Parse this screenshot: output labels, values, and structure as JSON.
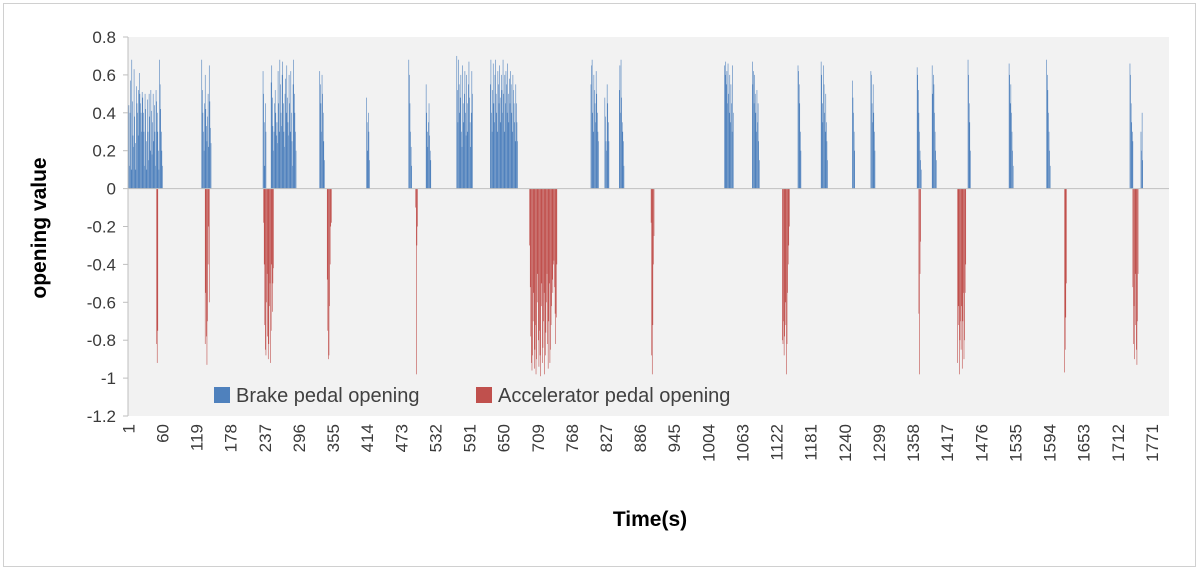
{
  "chart_data": {
    "type": "bar",
    "title": "",
    "xlabel": "Time(s)",
    "ylabel": "opening value",
    "ylim": [
      -1.2,
      0.8
    ],
    "yticks": [
      0.8,
      0.6,
      0.4,
      0.2,
      0,
      -0.2,
      -0.4,
      -0.6,
      -0.8,
      -1,
      -1.2
    ],
    "ytick_labels": [
      "0.8",
      "0.6",
      "0.4",
      "0.2",
      "0",
      "-0.2",
      "-0.4",
      "-0.6",
      "-0.8",
      "-1",
      "-1.2"
    ],
    "xlim": [
      1,
      1800
    ],
    "xticks": [
      1,
      60,
      119,
      178,
      237,
      296,
      355,
      414,
      473,
      532,
      591,
      650,
      709,
      768,
      827,
      886,
      945,
      1004,
      1063,
      1122,
      1181,
      1240,
      1299,
      1358,
      1417,
      1476,
      1535,
      1594,
      1653,
      1712,
      1771
    ],
    "grid": false,
    "legend_position": "bottom-left",
    "colors": {
      "brake": "#4f81bd",
      "accelerator": "#c0504d",
      "plot_bg": "#f2f2f2",
      "axis": "#bfbfbf"
    },
    "series": [
      {
        "name": "Brake pedal opening",
        "color": "#4f81bd",
        "sampling": "1 s per bar; values listed for active intervals, 0 elsewhere",
        "segments": [
          {
            "start": 1,
            "values": [
              0.38,
              0.44,
              0.12,
              0.4,
              0.57,
              0.1,
              0.68,
              0.46,
              0.28,
              0.22,
              0.63,
              0.38,
              0.24,
              0.1,
              0.54,
              0.45,
              0.4,
              0.28,
              0.52,
              0.61,
              0.5,
              0.45,
              0.4,
              0.3,
              0.51,
              0.48,
              0.4,
              0.3,
              0.12,
              0.5,
              0.42,
              0.25,
              0.1,
              0.47,
              0.3,
              0.15,
              0.5,
              0.38,
              0.2,
              0.52,
              0.41,
              0.18,
              0.35,
              0.5,
              0.25,
              0.44,
              0.3,
              0.12,
              0.52,
              0.46,
              0.4,
              0.3,
              0.2,
              0.1,
              0.68,
              0.55,
              0.42,
              0.3,
              0.2,
              0.12
            ]
          },
          {
            "start": 128,
            "values": [
              0.68,
              0.52,
              0.4,
              0.3,
              0.2,
              0.45,
              0.6,
              0.42,
              0.33,
              0.25,
              0.38,
              0.5,
              0.22,
              0.65,
              0.46,
              0.32,
              0.24
            ]
          },
          {
            "start": 234,
            "values": [
              0.62,
              0.5,
              0.35,
              0.12,
              0.45,
              0.3
            ]
          },
          {
            "start": 248,
            "values": [
              0.56,
              0.65,
              0.48,
              0.33,
              0.2,
              0.3,
              0.45,
              0.52,
              0.4,
              0.28,
              0.35,
              0.24,
              0.62,
              0.45,
              0.3,
              0.68,
              0.55,
              0.4,
              0.33,
              0.6,
              0.67,
              0.45,
              0.3,
              0.22,
              0.5,
              0.58,
              0.4,
              0.65,
              0.48,
              0.35,
              0.28,
              0.6,
              0.45,
              0.3,
              0.62,
              0.4,
              0.25,
              0.12,
              0.55,
              0.68,
              0.5,
              0.4,
              0.3,
              0.2
            ]
          },
          {
            "start": 332,
            "values": [
              0.62,
              0.55,
              0.45,
              0.3,
              0.6,
              0.5,
              0.4,
              0.25,
              0.15
            ]
          },
          {
            "start": 413,
            "values": [
              0.48,
              0.35,
              0.2,
              0.4,
              0.3,
              0.15
            ]
          },
          {
            "start": 486,
            "values": [
              0.68,
              0.6,
              0.45,
              0.3,
              0.22,
              0.12
            ]
          },
          {
            "start": 516,
            "values": [
              0.55,
              0.4,
              0.3,
              0.22,
              0.35,
              0.45,
              0.28,
              0.2,
              0.15
            ]
          },
          {
            "start": 569,
            "values": [
              0.7,
              0.52,
              0.35,
              0.68,
              0.55,
              0.4,
              0.48,
              0.6,
              0.3,
              0.22,
              0.65,
              0.45,
              0.35,
              0.5,
              0.62,
              0.4,
              0.28,
              0.6,
              0.45,
              0.3,
              0.55,
              0.67,
              0.48,
              0.35,
              0.22,
              0.4,
              0.62,
              0.5
            ]
          },
          {
            "start": 627,
            "values": [
              0.55,
              0.68,
              0.4,
              0.3,
              0.52,
              0.66,
              0.45,
              0.35,
              0.6,
              0.68,
              0.5,
              0.4,
              0.3,
              0.62,
              0.55,
              0.45,
              0.65,
              0.48,
              0.35,
              0.6,
              0.52,
              0.4,
              0.68,
              0.5,
              0.3,
              0.6,
              0.45,
              0.62,
              0.55,
              0.4,
              0.66,
              0.5,
              0.35,
              0.58,
              0.45,
              0.62,
              0.55,
              0.4,
              0.3,
              0.6,
              0.52,
              0.45,
              0.35,
              0.25,
              0.55,
              0.45,
              0.35,
              0.25
            ]
          },
          {
            "start": 801,
            "values": [
              0.55,
              0.65,
              0.68,
              0.4,
              0.3,
              0.6,
              0.52,
              0.45,
              0.35,
              0.62,
              0.5,
              0.4,
              0.3,
              0.25
            ]
          },
          {
            "start": 825,
            "values": [
              0.48,
              0.38,
              0.25,
              0.2,
              0.55,
              0.45,
              0.35,
              0.25
            ]
          },
          {
            "start": 850,
            "values": [
              0.52,
              0.65,
              0.4,
              0.68,
              0.48,
              0.35,
              0.3,
              0.25,
              0.12
            ]
          },
          {
            "start": 1032,
            "values": [
              0.65,
              0.6,
              0.67,
              0.55,
              0.62,
              0.45,
              0.66,
              0.5,
              0.4,
              0.6,
              0.35,
              0.55,
              0.45,
              0.3,
              0.65,
              0.4
            ]
          },
          {
            "start": 1080,
            "values": [
              0.67,
              0.55,
              0.62,
              0.45,
              0.6,
              0.5,
              0.4,
              0.3,
              0.52,
              0.35,
              0.45,
              0.25,
              0.15
            ]
          },
          {
            "start": 1159,
            "values": [
              0.65,
              0.62,
              0.55,
              0.45,
              0.3,
              0.2
            ]
          },
          {
            "start": 1199,
            "values": [
              0.67,
              0.6,
              0.45,
              0.35,
              0.65,
              0.55,
              0.4,
              0.3,
              0.5,
              0.35,
              0.25,
              0.15
            ]
          },
          {
            "start": 1253,
            "values": [
              0.57,
              0.48,
              0.4,
              0.3,
              0.2
            ]
          },
          {
            "start": 1285,
            "values": [
              0.62,
              0.6,
              0.45,
              0.35,
              0.55,
              0.4,
              0.3,
              0.2
            ]
          },
          {
            "start": 1365,
            "values": [
              0.64,
              0.6,
              0.52,
              0.4,
              0.3,
              0.2,
              0.15,
              0.1
            ]
          },
          {
            "start": 1391,
            "values": [
              0.65,
              0.5,
              0.6,
              0.55,
              0.4,
              0.3,
              0.2,
              0.15
            ]
          },
          {
            "start": 1453,
            "values": [
              0.68,
              0.6,
              0.45,
              0.35,
              0.2
            ]
          },
          {
            "start": 1524,
            "values": [
              0.66,
              0.6,
              0.45,
              0.55,
              0.4,
              0.3,
              0.2,
              0.12
            ]
          },
          {
            "start": 1589,
            "values": [
              0.68,
              0.6,
              0.52,
              0.4,
              0.3,
              0.2,
              0.12
            ]
          },
          {
            "start": 1733,
            "values": [
              0.66,
              0.6,
              0.45,
              0.35,
              0.3,
              0.25
            ]
          },
          {
            "start": 1752,
            "values": [
              0.3,
              0.2,
              0.4,
              0.15
            ]
          }
        ]
      },
      {
        "name": "Accelerator pedal opening",
        "color": "#c0504d",
        "sampling": "1 s per bar; values listed for active intervals, 0 elsewhere",
        "segments": [
          {
            "start": 50,
            "values": [
              -0.82,
              -0.92,
              -0.75
            ]
          },
          {
            "start": 134,
            "values": [
              -0.82,
              -0.55,
              -0.78,
              -0.93,
              -0.7,
              -0.4,
              -0.2,
              -0.6
            ]
          },
          {
            "start": 235,
            "values": [
              -0.18,
              -0.4,
              -0.72,
              -0.85,
              -0.88,
              -0.6,
              -0.45,
              -0.78,
              -0.9,
              -0.82,
              -0.62,
              -0.5,
              -0.92,
              -0.75,
              -0.4,
              -0.65,
              -0.5,
              -0.42
            ]
          },
          {
            "start": 345,
            "values": [
              -0.48,
              -0.75,
              -0.9,
              -0.88,
              -0.62,
              -0.4,
              -0.2,
              -0.18
            ]
          },
          {
            "start": 498,
            "values": [
              -0.1,
              -0.98,
              -0.3,
              -0.2
            ]
          },
          {
            "start": 695,
            "values": [
              -0.3,
              -0.52,
              -0.78,
              -0.92,
              -0.96,
              -0.88,
              -0.7,
              -0.55,
              -0.95,
              -0.85,
              -0.72,
              -0.98,
              -0.9,
              -0.6,
              -0.45,
              -0.8,
              -0.94,
              -0.75,
              -0.88,
              -0.99,
              -0.62,
              -0.5,
              -0.92,
              -0.84,
              -0.7,
              -0.55,
              -0.98,
              -0.88,
              -0.76,
              -0.6,
              -0.45,
              -0.82,
              -0.95,
              -0.7,
              -0.5,
              -0.92,
              -0.85,
              -0.72,
              -0.62,
              -0.48,
              -0.55,
              -0.4,
              -0.38,
              -0.52,
              -0.66,
              -0.82,
              -0.68,
              -0.4
            ]
          },
          {
            "start": 905,
            "values": [
              -0.18,
              -0.88,
              -0.98,
              -0.72,
              -0.4,
              -0.25
            ]
          },
          {
            "start": 1132,
            "values": [
              -0.8,
              -0.82,
              -0.7,
              -0.88,
              -0.78,
              -0.6,
              -0.72,
              -0.98,
              -0.82,
              -0.55,
              -0.4,
              -0.3,
              -0.2
            ]
          },
          {
            "start": 1368,
            "values": [
              -0.66,
              -0.98,
              -0.45,
              -0.28
            ]
          },
          {
            "start": 1435,
            "values": [
              -0.92,
              -0.72,
              -0.62,
              -0.98,
              -0.8,
              -0.7,
              -0.85,
              -0.62,
              -0.95,
              -0.7,
              -0.55,
              -0.9,
              -0.8,
              -0.55,
              -0.4
            ]
          },
          {
            "start": 1620,
            "values": [
              -0.97,
              -0.85,
              -0.68,
              -0.5
            ]
          },
          {
            "start": 1738,
            "values": [
              -0.52,
              -0.82,
              -0.62,
              -0.9,
              -0.45,
              -0.72,
              -0.85,
              -0.93,
              -0.7,
              -0.45
            ]
          }
        ]
      }
    ]
  }
}
